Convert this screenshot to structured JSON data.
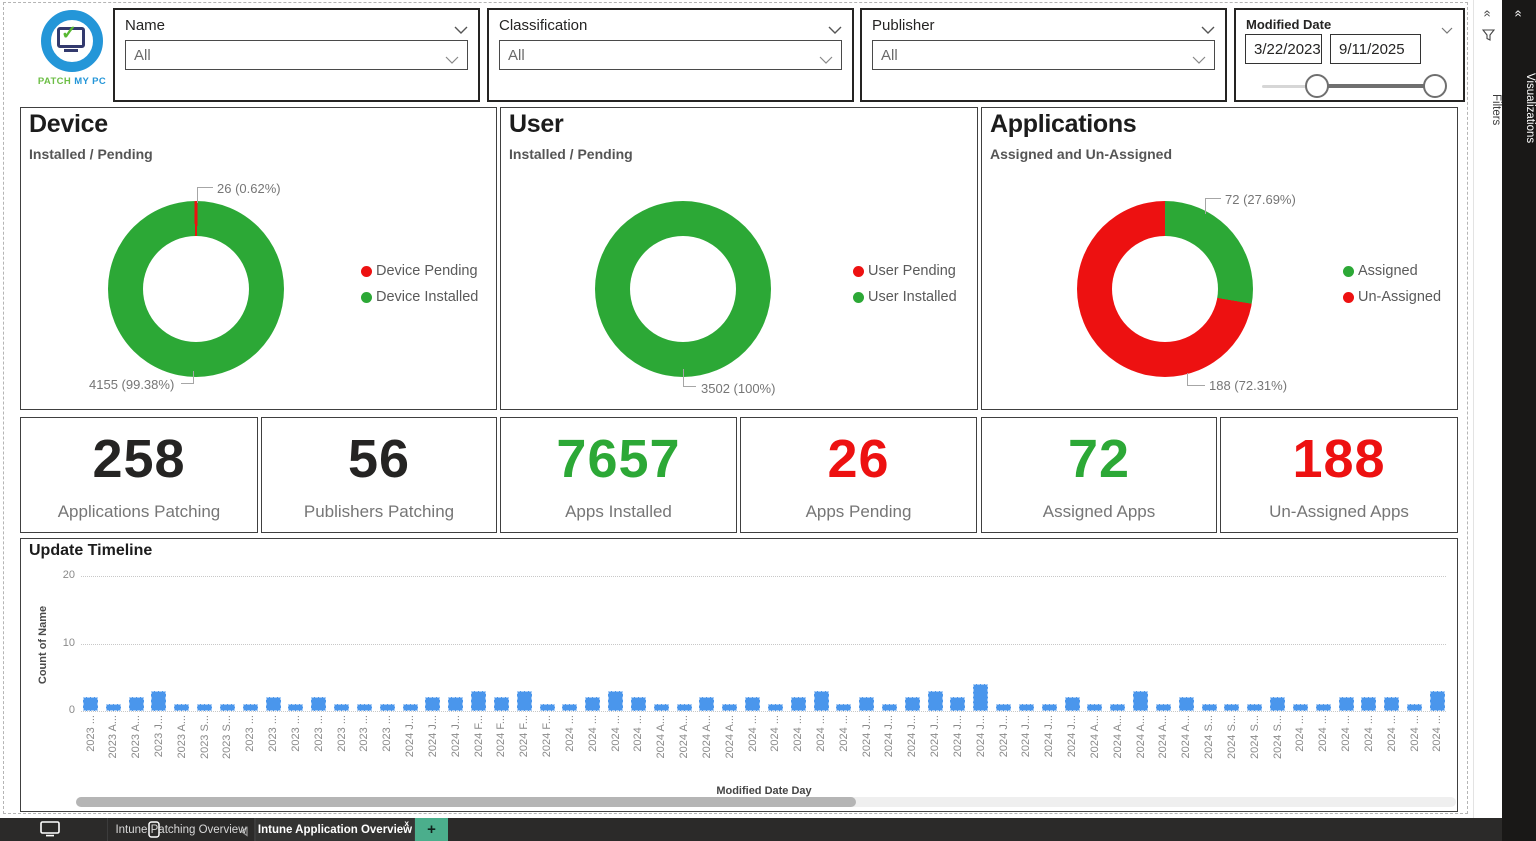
{
  "colors": {
    "green": "#2CA836",
    "red": "#ED1111",
    "blue": "#4A96EC",
    "teal_plus": "#4BAE8C",
    "dark": "#252423"
  },
  "logo": {
    "text_green": "PATCH",
    "text_blue": "MY PC",
    "check_glyph": "✓"
  },
  "filters": [
    {
      "label": "Name",
      "value": "All"
    },
    {
      "label": "Classification",
      "value": "All"
    },
    {
      "label": "Publisher",
      "value": "All"
    }
  ],
  "date_filter": {
    "label": "Modified Date",
    "start": "3/22/2023",
    "end": "9/11/2025"
  },
  "right_rails": {
    "filters_label": "Filters",
    "visualizations_label": "Visualizations",
    "collapse_glyph": "«"
  },
  "donuts": [
    {
      "title": "Device",
      "subtitle": "Installed / Pending",
      "start_deg": -1.1,
      "slices": [
        {
          "name": "Device Pending",
          "value": 26,
          "pct": 0.62,
          "color": "red"
        },
        {
          "name": "Device Installed",
          "value": 4155,
          "pct": 99.38,
          "color": "green"
        }
      ],
      "callout_top": "26 (0.62%)",
      "callout_bottom": "4155 (99.38%)",
      "legend": [
        {
          "label": "Device Pending",
          "color": "red"
        },
        {
          "label": "Device Installed",
          "color": "green"
        }
      ]
    },
    {
      "title": "User",
      "subtitle": "Installed / Pending",
      "start_deg": 0,
      "slices": [
        {
          "name": "User Installed",
          "value": 3502,
          "pct": 100,
          "color": "green"
        }
      ],
      "callout_bottom": "3502 (100%)",
      "legend": [
        {
          "label": "User Pending",
          "color": "red"
        },
        {
          "label": "User Installed",
          "color": "green"
        }
      ]
    },
    {
      "title": "Applications",
      "subtitle": "Assigned and Un-Assigned",
      "start_deg": 0,
      "slices": [
        {
          "name": "Assigned",
          "value": 72,
          "pct": 27.69,
          "color": "green"
        },
        {
          "name": "Un-Assigned",
          "value": 188,
          "pct": 72.31,
          "color": "red"
        }
      ],
      "callout_top": "72 (27.69%)",
      "callout_bottom": "188 (72.31%)",
      "legend": [
        {
          "label": "Assigned",
          "color": "green"
        },
        {
          "label": "Un-Assigned",
          "color": "red"
        }
      ]
    }
  ],
  "kpis": [
    {
      "value": "258",
      "label": "Applications Patching",
      "color": "dark"
    },
    {
      "value": "56",
      "label": "Publishers Patching",
      "color": "dark"
    },
    {
      "value": "7657",
      "label": "Apps Installed",
      "color": "green"
    },
    {
      "value": "26",
      "label": "Apps Pending",
      "color": "red"
    },
    {
      "value": "72",
      "label": "Assigned Apps",
      "color": "green"
    },
    {
      "value": "188",
      "label": "Un-Assigned Apps",
      "color": "red"
    }
  ],
  "chart_data": {
    "type": "bar",
    "title": "Update Timeline",
    "xlabel": "Modified Date Day",
    "ylabel": "Count of Name",
    "ylim": [
      0,
      20
    ],
    "yticks": [
      0,
      10,
      20
    ],
    "grid": "dotted horizontal",
    "bar_color": "#4A96EC",
    "categories": [
      "2023 ...",
      "2023 A...",
      "2023 A...",
      "2023 J...",
      "2023 A...",
      "2023 S...",
      "2023 S...",
      "2023 ...",
      "2023 ...",
      "2023 ...",
      "2023 ...",
      "2023 ...",
      "2023 ...",
      "2023 ...",
      "2024 J...",
      "2024 J...",
      "2024 J...",
      "2024 F...",
      "2024 F...",
      "2024 F...",
      "2024 F...",
      "2024 ...",
      "2024 ...",
      "2024 ...",
      "2024 ...",
      "2024 A...",
      "2024 A...",
      "2024 A...",
      "2024 A...",
      "2024 ...",
      "2024 ...",
      "2024 ...",
      "2024 ...",
      "2024 ...",
      "2024 J...",
      "2024 J...",
      "2024 J...",
      "2024 J...",
      "2024 J...",
      "2024 J...",
      "2024 J...",
      "2024 J...",
      "2024 J...",
      "2024 J...",
      "2024 A...",
      "2024 A...",
      "2024 A...",
      "2024 A...",
      "2024 A...",
      "2024 S...",
      "2024 S...",
      "2024 S...",
      "2024 S...",
      "2024 ...",
      "2024 ...",
      "2024 ...",
      "2024 ...",
      "2024 ...",
      "2024 ...",
      "2024 ..."
    ],
    "values": [
      2,
      1,
      2,
      3,
      1,
      1,
      1,
      1,
      2,
      1,
      2,
      1,
      1,
      1,
      1,
      2,
      2,
      3,
      2,
      3,
      1,
      1,
      2,
      3,
      2,
      1,
      1,
      2,
      1,
      2,
      1,
      2,
      3,
      1,
      2,
      1,
      2,
      3,
      2,
      4,
      1,
      1,
      1,
      2,
      1,
      1,
      3,
      1,
      2,
      1,
      1,
      1,
      2,
      1,
      1,
      2,
      2,
      2,
      1,
      3
    ]
  },
  "bottom_bar": {
    "tabs": [
      {
        "label": "Intune Patching Overview",
        "active": false
      },
      {
        "label": "Intune Application Overview",
        "active": true,
        "close_glyph": "x"
      }
    ],
    "add_tab_glyph": "+"
  }
}
